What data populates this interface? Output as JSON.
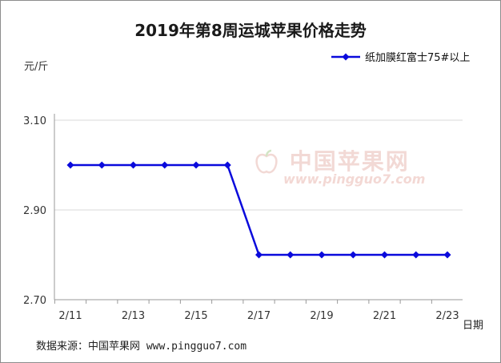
{
  "chart_data": {
    "type": "line",
    "title": "2019年第8周运城苹果价格走势",
    "ylabel": "元/斤",
    "xlabel": "日期",
    "ylim": [
      2.7,
      3.1
    ],
    "yticks": [
      "3.10",
      "2.90",
      "2.70"
    ],
    "x": [
      "2/11",
      "2/12",
      "2/13",
      "2/14",
      "2/15",
      "2/16",
      "2/17",
      "2/18",
      "2/19",
      "2/20",
      "2/21",
      "2/22",
      "2/23"
    ],
    "xtick_labels": [
      "2/11",
      "2/13",
      "2/15",
      "2/17",
      "2/19",
      "2/21",
      "2/23"
    ],
    "series": [
      {
        "name": "纸加膜红富士75#以上",
        "values": [
          3.0,
          3.0,
          3.0,
          3.0,
          3.0,
          3.0,
          2.8,
          2.8,
          2.8,
          2.8,
          2.8,
          2.8,
          2.8
        ]
      }
    ],
    "grid": true,
    "legend": "top-right",
    "series_color": "#0a0adc"
  },
  "source_text": "数据来源：中国苹果网 www.pingguo7.com",
  "watermark": {
    "text": "中国苹果网",
    "url": "www.pingguo7.com"
  }
}
